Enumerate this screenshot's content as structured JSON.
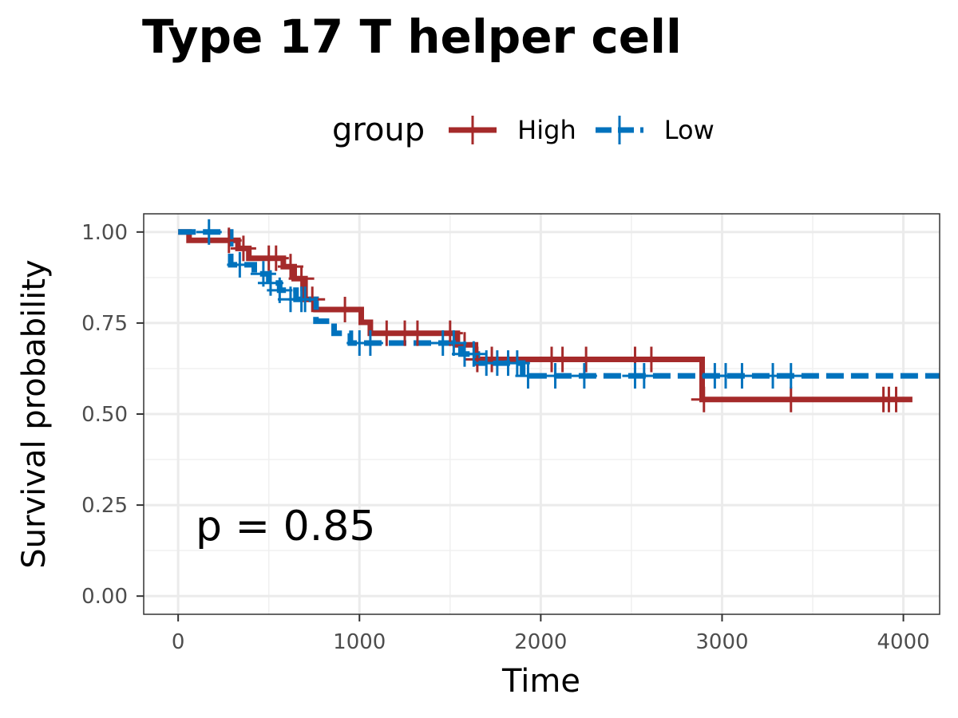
{
  "chart_data": {
    "type": "line",
    "subtype": "kaplan-meier",
    "title": "Type 17 T helper cell",
    "xlabel": "Time",
    "ylabel": "Survival probability",
    "xlim": [
      -190,
      4200
    ],
    "ylim": [
      -0.05,
      1.05
    ],
    "x_ticks": [
      0,
      1000,
      2000,
      3000,
      4000
    ],
    "x_tick_labels": [
      "0",
      "1000",
      "2000",
      "3000",
      "4000"
    ],
    "y_ticks": [
      0,
      0.25,
      0.5,
      0.75,
      1.0
    ],
    "y_tick_labels": [
      "0.00",
      "0.25",
      "0.50",
      "0.75",
      "1.00"
    ],
    "grid": true,
    "legend": {
      "title": "group",
      "placement": "top",
      "entries": [
        "High",
        "Low"
      ]
    },
    "annotation": "p = 0.85",
    "series": [
      {
        "name": "High",
        "color": "#A52A2A",
        "dash": "solid",
        "steps": [
          [
            0,
            1.0
          ],
          [
            60,
            0.977
          ],
          [
            330,
            0.955
          ],
          [
            390,
            0.928
          ],
          [
            580,
            0.905
          ],
          [
            640,
            0.872
          ],
          [
            700,
            0.815
          ],
          [
            760,
            0.787
          ],
          [
            1010,
            0.752
          ],
          [
            1060,
            0.722
          ],
          [
            1540,
            0.69
          ],
          [
            1640,
            0.65
          ],
          [
            2890,
            0.54
          ],
          [
            4050,
            0.54
          ]
        ],
        "censors": [
          [
            280,
            0.977
          ],
          [
            360,
            0.955
          ],
          [
            500,
            0.928
          ],
          [
            540,
            0.928
          ],
          [
            620,
            0.905
          ],
          [
            680,
            0.872
          ],
          [
            740,
            0.815
          ],
          [
            920,
            0.787
          ],
          [
            1150,
            0.722
          ],
          [
            1250,
            0.722
          ],
          [
            1320,
            0.722
          ],
          [
            1500,
            0.722
          ],
          [
            1580,
            0.69
          ],
          [
            1650,
            0.65
          ],
          [
            1730,
            0.65
          ],
          [
            2060,
            0.65
          ],
          [
            2120,
            0.65
          ],
          [
            2250,
            0.65
          ],
          [
            2520,
            0.65
          ],
          [
            2610,
            0.65
          ],
          [
            2900,
            0.54
          ],
          [
            3380,
            0.54
          ],
          [
            3890,
            0.54
          ],
          [
            3920,
            0.54
          ],
          [
            3960,
            0.54
          ]
        ]
      },
      {
        "name": "Low",
        "color": "#0072BD",
        "dash": "dashed",
        "steps": [
          [
            0,
            1.0
          ],
          [
            290,
            0.91
          ],
          [
            420,
            0.885
          ],
          [
            500,
            0.86
          ],
          [
            560,
            0.84
          ],
          [
            650,
            0.815
          ],
          [
            760,
            0.755
          ],
          [
            860,
            0.722
          ],
          [
            950,
            0.695
          ],
          [
            1560,
            0.665
          ],
          [
            1650,
            0.64
          ],
          [
            1900,
            0.605
          ],
          [
            4200,
            0.605
          ]
        ],
        "censors": [
          [
            170,
            1.0
          ],
          [
            340,
            0.91
          ],
          [
            470,
            0.885
          ],
          [
            510,
            0.86
          ],
          [
            560,
            0.84
          ],
          [
            620,
            0.815
          ],
          [
            680,
            0.815
          ],
          [
            700,
            0.815
          ],
          [
            1000,
            0.695
          ],
          [
            1060,
            0.695
          ],
          [
            1460,
            0.695
          ],
          [
            1520,
            0.695
          ],
          [
            1580,
            0.665
          ],
          [
            1630,
            0.665
          ],
          [
            1700,
            0.64
          ],
          [
            1760,
            0.64
          ],
          [
            1820,
            0.64
          ],
          [
            1870,
            0.64
          ],
          [
            1930,
            0.605
          ],
          [
            2080,
            0.605
          ],
          [
            2240,
            0.605
          ],
          [
            2520,
            0.605
          ],
          [
            2570,
            0.605
          ],
          [
            2960,
            0.605
          ],
          [
            3020,
            0.605
          ],
          [
            3110,
            0.605
          ],
          [
            3280,
            0.605
          ],
          [
            3380,
            0.605
          ]
        ]
      }
    ]
  }
}
